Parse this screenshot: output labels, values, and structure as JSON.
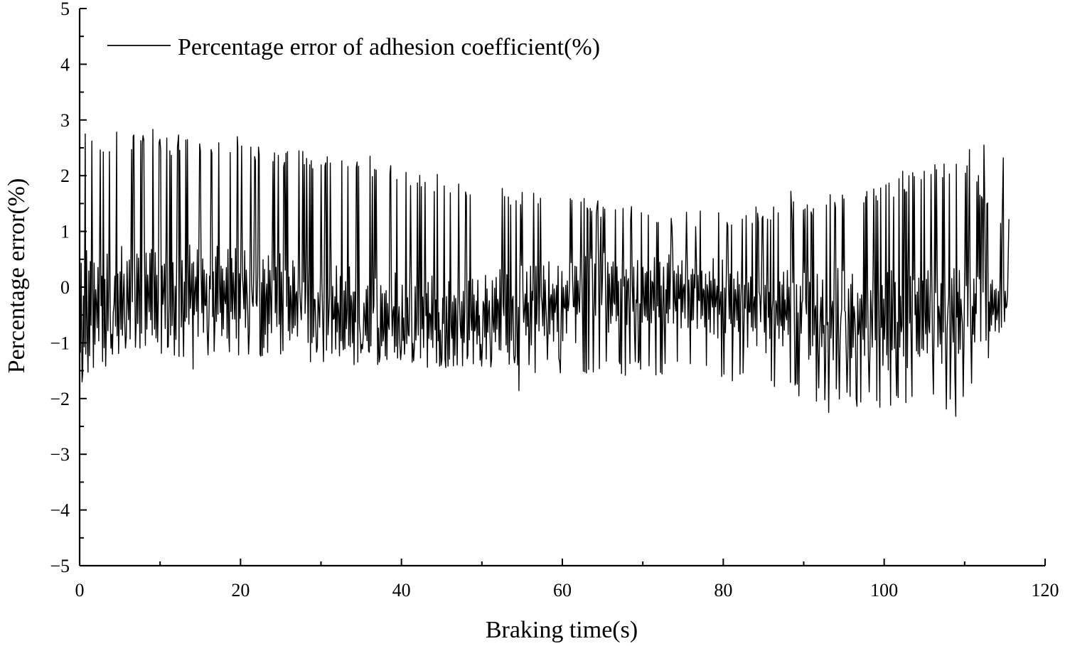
{
  "chart_data": {
    "type": "line",
    "title": "",
    "xlabel": "Braking time(s)",
    "ylabel": "Percentage error(%)",
    "xlim": [
      0,
      120
    ],
    "ylim": [
      -5,
      5
    ],
    "x_ticks": [
      0,
      20,
      40,
      60,
      80,
      100,
      120
    ],
    "y_ticks": [
      -5,
      -4,
      -3,
      -2,
      -1,
      0,
      1,
      2,
      3,
      4,
      5
    ],
    "x_tick_labels": [
      "0",
      "20",
      "40",
      "60",
      "80",
      "100",
      "120"
    ],
    "y_tick_labels": [
      "−5",
      "−4",
      "−3",
      "−2",
      "−1",
      "0",
      "1",
      "2",
      "3",
      "4",
      "5"
    ],
    "grid": false,
    "legend_position": "top-left",
    "series": [
      {
        "name": "Percentage error of adhesion coefficient(%)",
        "color": "#000000",
        "style": "dense oscillation",
        "x_range": [
          0,
          115.5
        ],
        "envelope": [
          {
            "x": 0,
            "upper": 2.75,
            "lower": -1.7
          },
          {
            "x": 5,
            "upper": 2.75,
            "lower": -1.3
          },
          {
            "x": 10,
            "upper": 2.7,
            "lower": -1.25
          },
          {
            "x": 20,
            "upper": 2.6,
            "lower": -1.3
          },
          {
            "x": 30,
            "upper": 2.4,
            "lower": -1.35
          },
          {
            "x": 40,
            "upper": 2.2,
            "lower": -1.45
          },
          {
            "x": 50,
            "upper": 1.85,
            "lower": -1.5
          },
          {
            "x": 60,
            "upper": 1.65,
            "lower": -1.55
          },
          {
            "x": 70,
            "upper": 1.45,
            "lower": -1.6
          },
          {
            "x": 80,
            "upper": 1.35,
            "lower": -1.65
          },
          {
            "x": 90,
            "upper": 1.6,
            "lower": -2.05
          },
          {
            "x": 100,
            "upper": 1.9,
            "lower": -2.2
          },
          {
            "x": 110,
            "upper": 2.4,
            "lower": -2.2
          },
          {
            "x": 115.5,
            "upper": 1.2,
            "lower": -0.5
          }
        ],
        "points": [
          {
            "x": 0.3,
            "y": -1.7
          },
          {
            "x": 0.7,
            "y": 2.75
          },
          {
            "x": 4.6,
            "y": 2.78
          },
          {
            "x": 9.1,
            "y": 2.83
          },
          {
            "x": 12.3,
            "y": 2.73
          },
          {
            "x": 14.1,
            "y": -1.47
          },
          {
            "x": 19.6,
            "y": 2.7
          },
          {
            "x": 36.1,
            "y": 2.35
          },
          {
            "x": 54.6,
            "y": -1.86
          },
          {
            "x": 88.4,
            "y": 1.72
          },
          {
            "x": 93.1,
            "y": -2.25
          },
          {
            "x": 97.7,
            "y": 1.62
          },
          {
            "x": 100.8,
            "y": -2.12
          },
          {
            "x": 102.3,
            "y": 2.08
          },
          {
            "x": 108.9,
            "y": -2.32
          },
          {
            "x": 110.6,
            "y": 2.47
          },
          {
            "x": 112.4,
            "y": 2.55
          },
          {
            "x": 114.8,
            "y": 2.32
          },
          {
            "x": 115.5,
            "y": 1.22
          }
        ]
      }
    ]
  }
}
